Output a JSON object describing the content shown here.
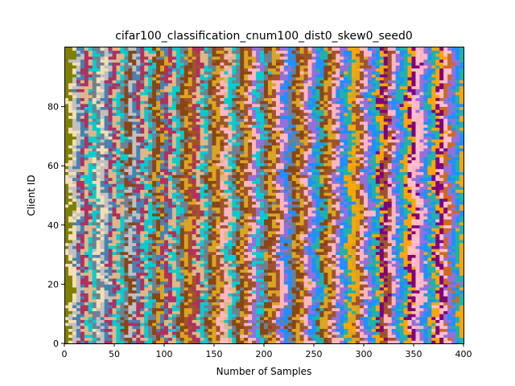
{
  "chart_data": {
    "type": "heatmap",
    "title": "cifar100_classification_cnum100_dist0_skew0_seed0",
    "xlabel": "Number of Samples",
    "ylabel": "Client ID",
    "xlim": [
      0,
      400
    ],
    "ylim": [
      0,
      100
    ],
    "xticks": [
      0,
      50,
      100,
      150,
      200,
      250,
      300,
      350,
      400
    ],
    "yticks": [
      0,
      20,
      40,
      60,
      80
    ],
    "num_clients": 100,
    "samples_per_client": 400,
    "num_classes": 100,
    "grid": false,
    "legend": "none",
    "palette": [
      "#808000",
      "#006400",
      "#2e8b57",
      "#ff7f50",
      "#ffffff",
      "#ffa500",
      "#8b4513",
      "#f5deb3",
      "#9acd32",
      "#dc143c",
      "#32cd32",
      "#ff69b4",
      "#800080",
      "#daa520",
      "#c0c0c0",
      "#ff1493",
      "#7fff00",
      "#b8860b",
      "#008080",
      "#ffc0cb",
      "#a0522d",
      "#4682b4",
      "#da70d6",
      "#f08080",
      "#228b22",
      "#e6e6fa",
      "#d2691e",
      "#ffb6c1",
      "#b03060",
      "#ba55d3",
      "#8b0000",
      "#00ff7f",
      "#696969",
      "#ff00ff",
      "#9370db",
      "#deb887",
      "#000000",
      "#ee82ee",
      "#0000cd",
      "#fffacd",
      "#ffd700",
      "#1e90ff",
      "#00ced1",
      "#5f9ea0",
      "#00bfff",
      "#87ceeb",
      "#4169e1",
      "#bc8f8f",
      "#20b2aa",
      "#708090"
    ]
  }
}
